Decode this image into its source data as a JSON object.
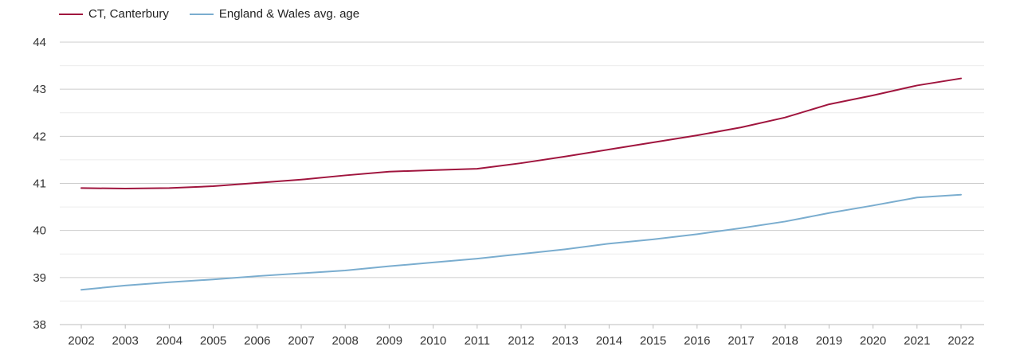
{
  "chart_data": {
    "type": "line",
    "title": "",
    "xlabel": "",
    "ylabel": "",
    "x": [
      2002,
      2003,
      2004,
      2005,
      2006,
      2007,
      2008,
      2009,
      2010,
      2011,
      2012,
      2013,
      2014,
      2015,
      2016,
      2017,
      2018,
      2019,
      2020,
      2021,
      2022
    ],
    "ylim": [
      38,
      44
    ],
    "yticks": [
      38,
      39,
      40,
      41,
      42,
      43,
      44
    ],
    "grid": true,
    "legend_position": "top-left",
    "series": [
      {
        "name": "CT, Canterbury",
        "color": "#a0153e",
        "values": [
          40.9,
          40.89,
          40.9,
          40.94,
          41.01,
          41.08,
          41.17,
          41.25,
          41.28,
          41.31,
          41.43,
          41.57,
          41.72,
          41.87,
          42.02,
          42.19,
          42.4,
          42.68,
          42.87,
          43.08,
          43.23
        ]
      },
      {
        "name": "England & Wales avg. age",
        "color": "#7aadcf",
        "values": [
          38.74,
          38.83,
          38.9,
          38.96,
          39.03,
          39.09,
          39.15,
          39.24,
          39.32,
          39.4,
          39.5,
          39.6,
          39.72,
          39.81,
          39.92,
          40.05,
          40.19,
          40.37,
          40.53,
          40.7,
          40.76
        ]
      }
    ]
  }
}
